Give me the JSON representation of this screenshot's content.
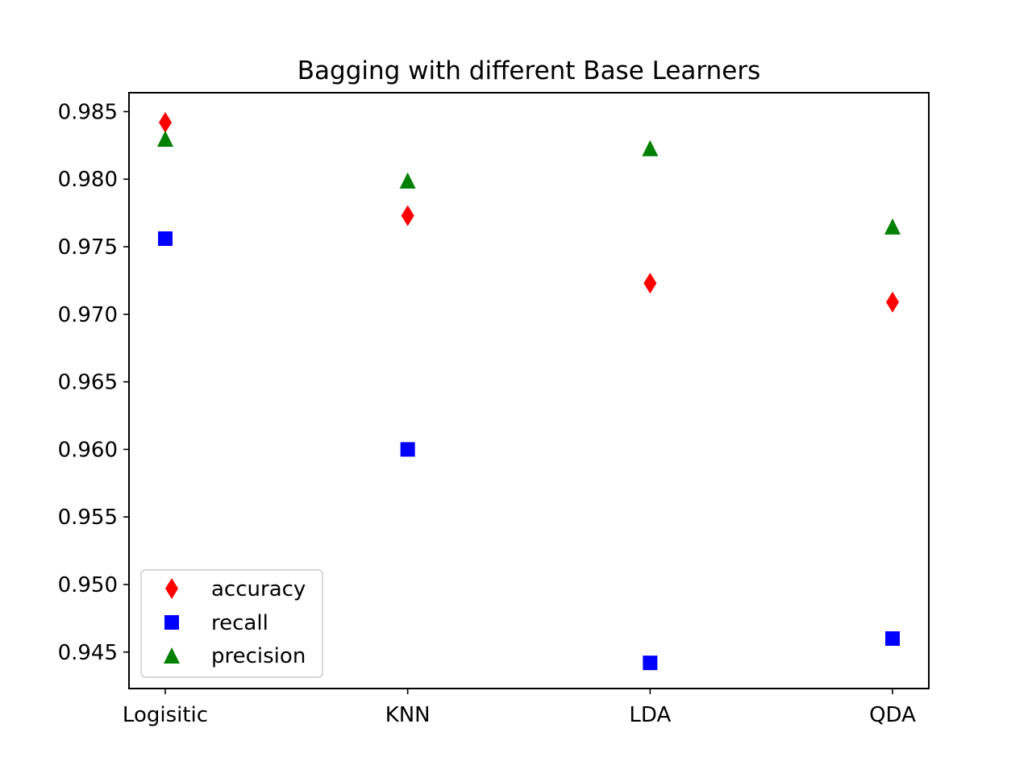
{
  "chart_data": {
    "type": "scatter",
    "title": "Bagging with different Base Learners",
    "xlabel": "",
    "ylabel": "",
    "categories": [
      "Logisitic",
      "KNN",
      "LDA",
      "QDA"
    ],
    "ylim": [
      0.9423,
      0.9864
    ],
    "yticks": [
      "0.945",
      "0.950",
      "0.955",
      "0.960",
      "0.965",
      "0.970",
      "0.975",
      "0.980",
      "0.985"
    ],
    "grid": false,
    "legend_position": "lower-left",
    "series": [
      {
        "name": "accuracy",
        "marker": "thin-diamond",
        "color": "#ff0000",
        "values": [
          0.9842,
          0.9773,
          0.9723,
          0.9709
        ]
      },
      {
        "name": "recall",
        "marker": "square",
        "color": "#0000ff",
        "values": [
          0.9756,
          0.96,
          0.9442,
          0.946
        ]
      },
      {
        "name": "precision",
        "marker": "triangle-up",
        "color": "#008000",
        "values": [
          0.983,
          0.9799,
          0.9823,
          0.9765
        ]
      }
    ]
  }
}
